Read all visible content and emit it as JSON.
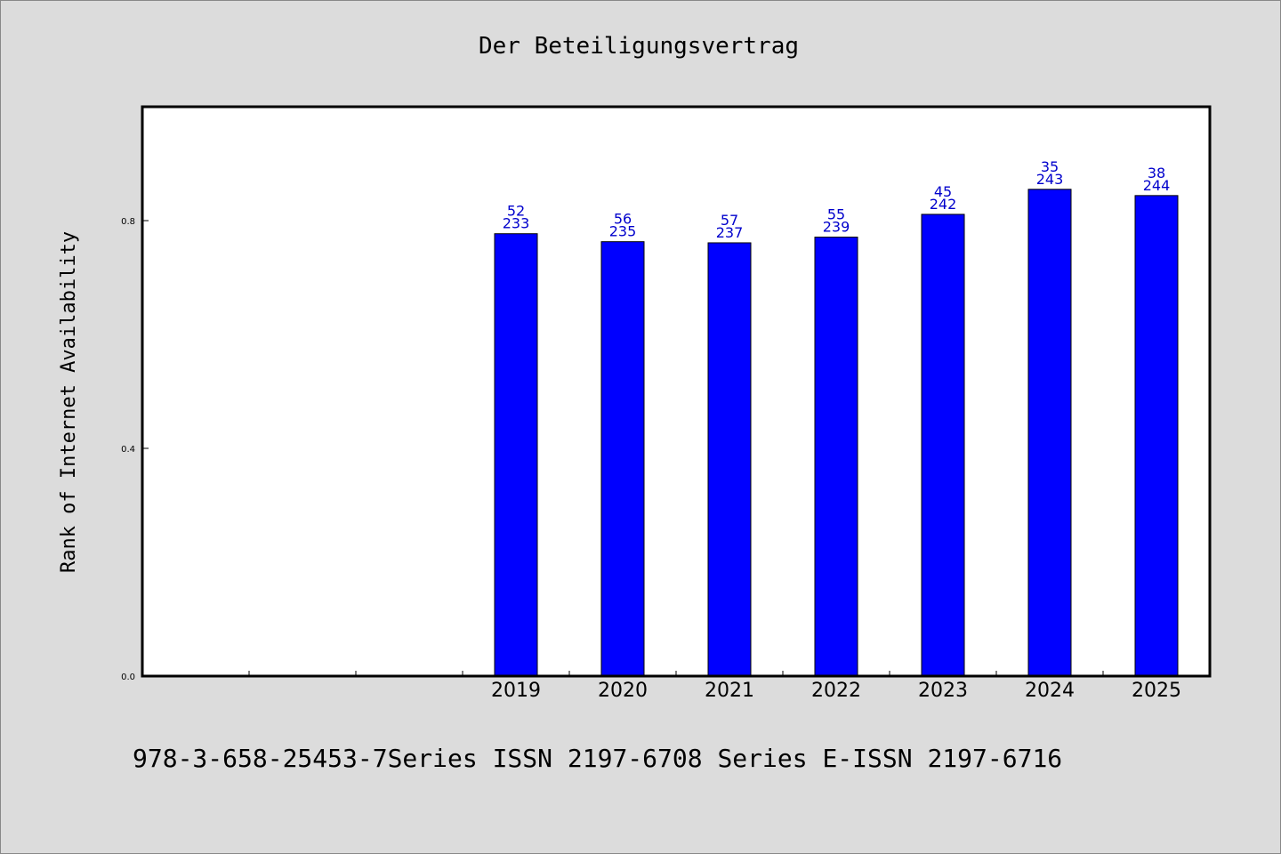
{
  "chart_data": {
    "type": "bar",
    "title": "Der Beteiligungsvertrag",
    "ylabel": "Rank of Internet Availability",
    "xlabel": "",
    "ylim": [
      0,
      1.0
    ],
    "yticks": [
      "0.0",
      "0.4",
      "0.8"
    ],
    "ytick_values": [
      0.0,
      0.4,
      0.8
    ],
    "categories": [
      "",
      "",
      "",
      "2019",
      "2020",
      "2021",
      "2022",
      "2023",
      "2024",
      "2025"
    ],
    "values": [
      null,
      null,
      null,
      0.777,
      0.763,
      0.761,
      0.771,
      0.811,
      0.855,
      0.844
    ],
    "label_top": [
      null,
      null,
      null,
      "52",
      "56",
      "57",
      "55",
      "45",
      "35",
      "38"
    ],
    "label_bottom": [
      null,
      null,
      null,
      "233",
      "235",
      "237",
      "239",
      "242",
      "243",
      "244"
    ],
    "bar_color": "#0000ff",
    "label_color": "#0000cc",
    "grid": false,
    "legend": "none"
  },
  "footer": {
    "text": "978-3-658-25453-7Series ISSN 2197-6708 Series E-ISSN 2197-6716"
  },
  "colors": {
    "background": "#dcdcdc",
    "plot_background": "#ffffff",
    "axes": "#000000"
  }
}
